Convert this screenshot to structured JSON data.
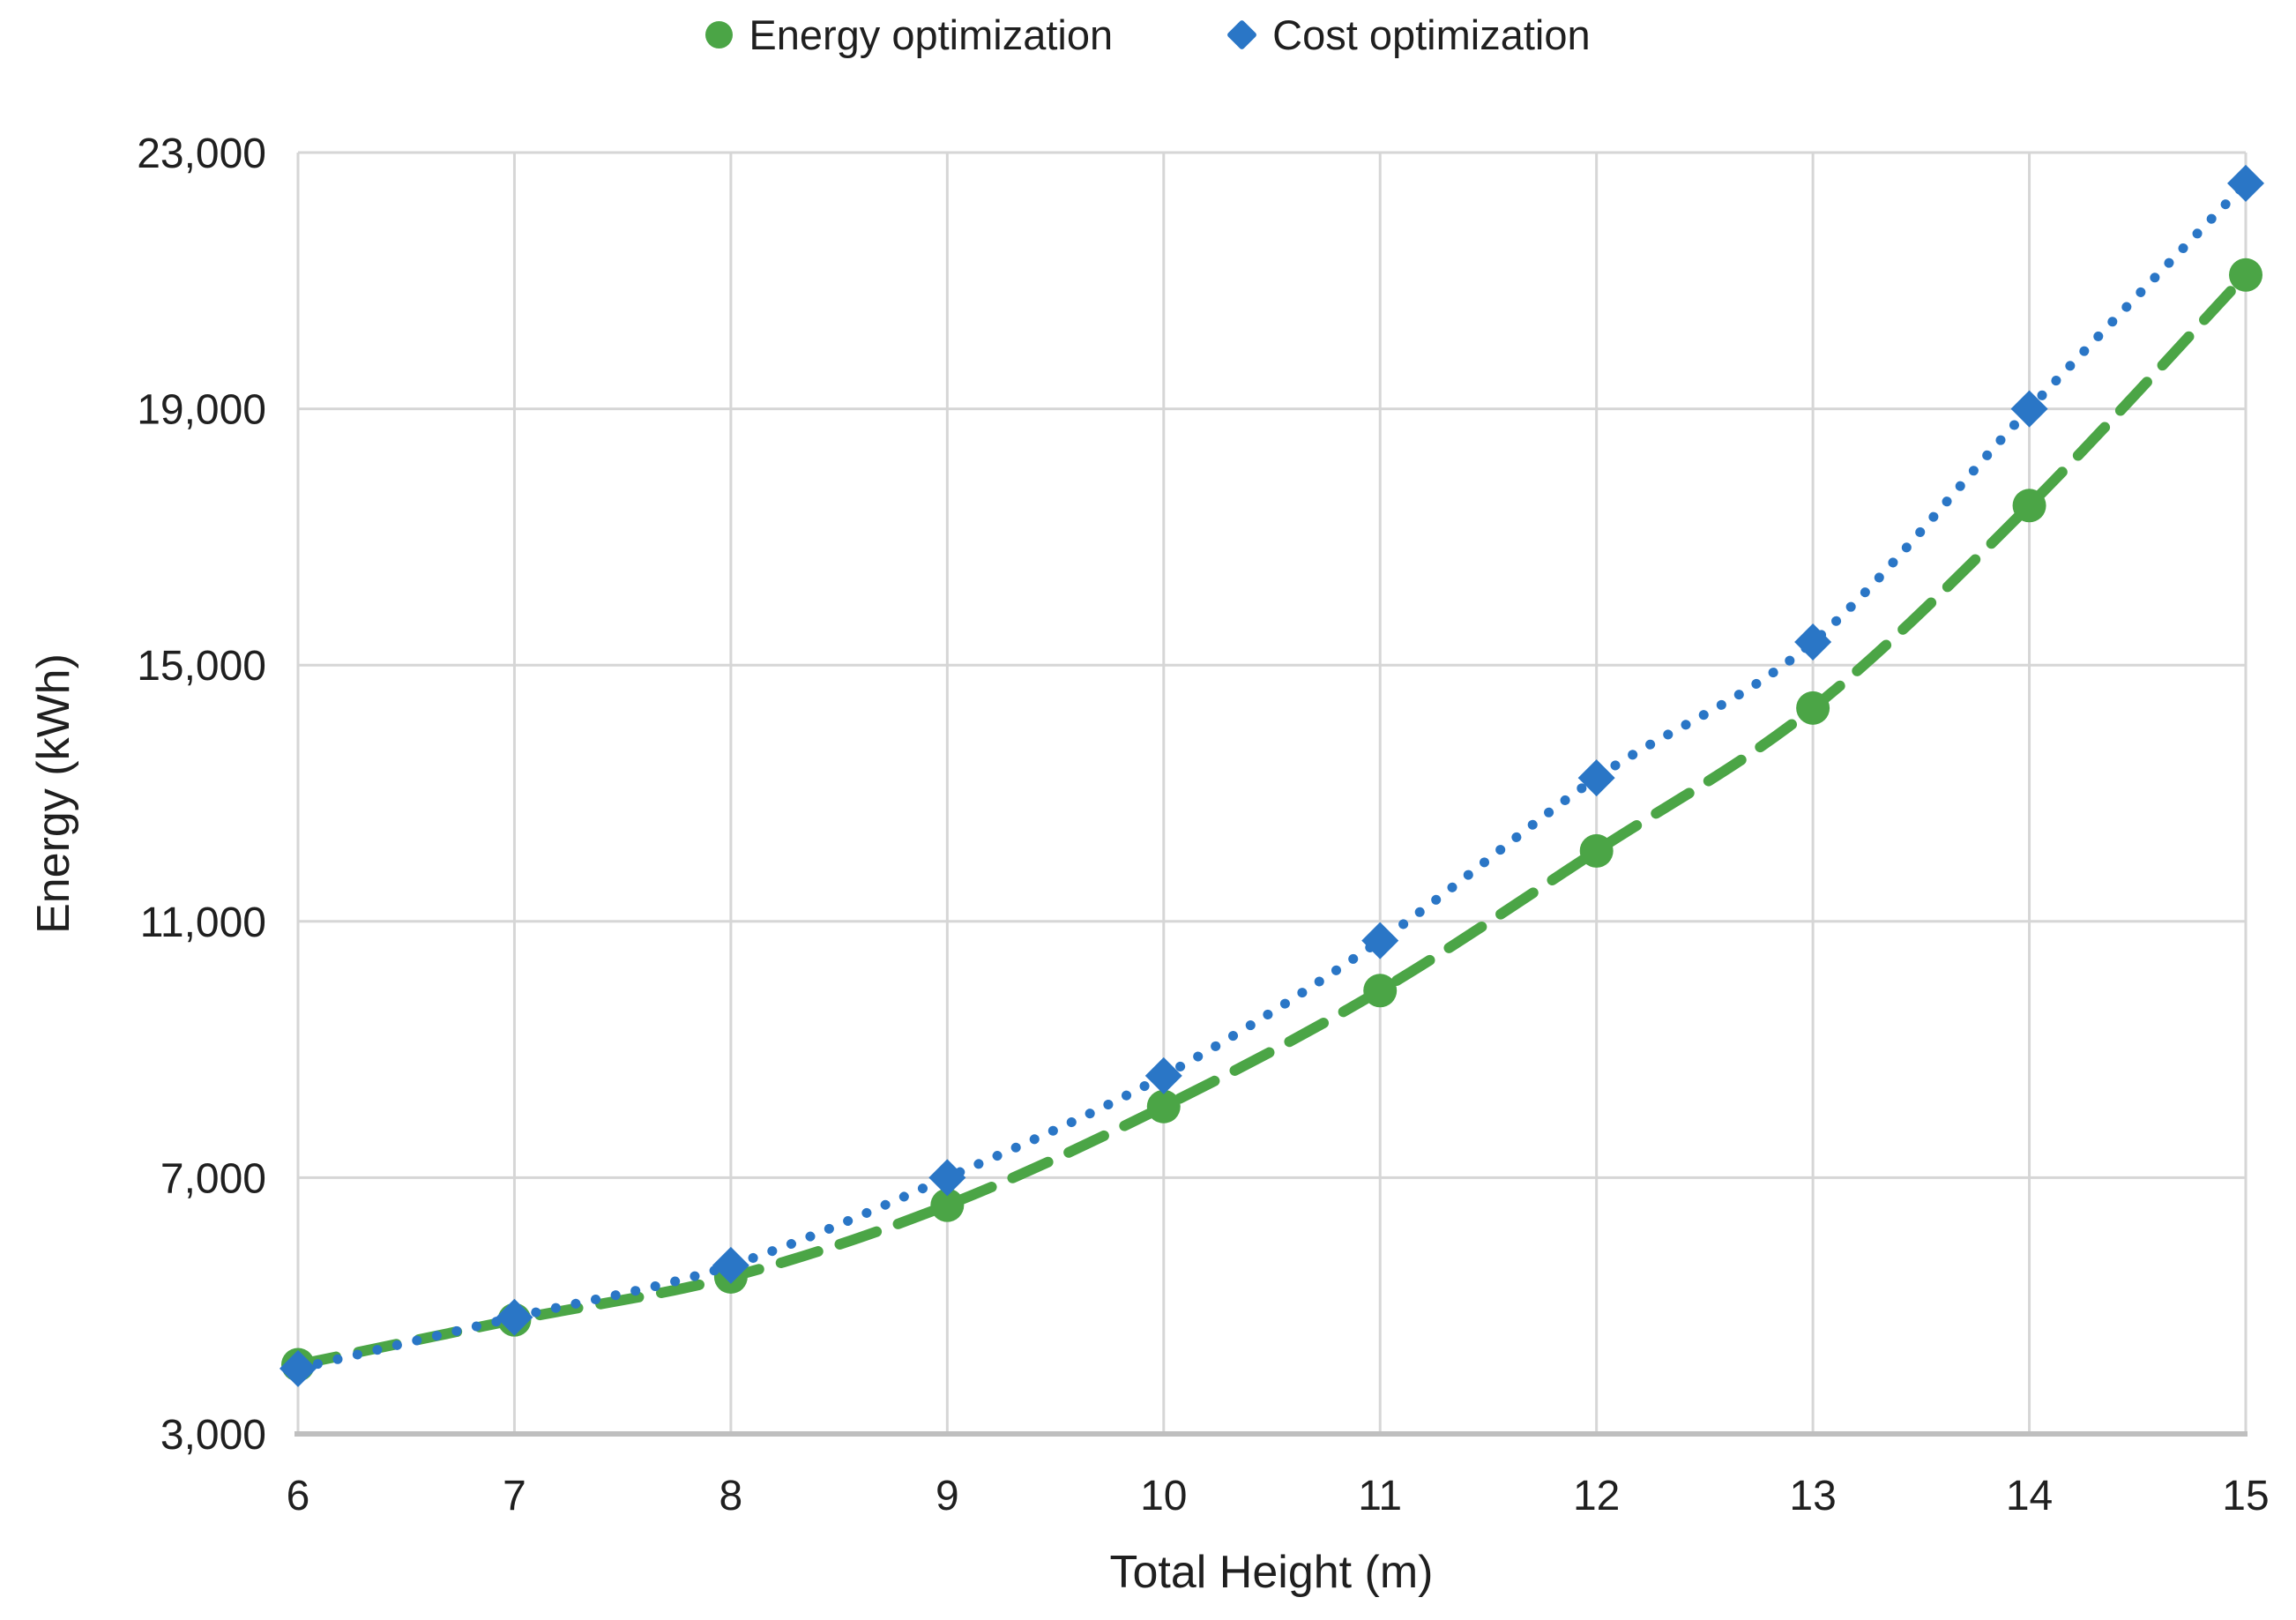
{
  "chart_data": {
    "type": "line",
    "title": "",
    "xlabel": "Total Height (m)",
    "ylabel": "Energy (kWh)",
    "x": [
      6,
      7,
      8,
      9,
      10,
      11,
      12,
      13,
      14,
      15
    ],
    "xlim": [
      6,
      15
    ],
    "ylim": [
      3000,
      23000
    ],
    "grid": true,
    "legend_position": "top-center",
    "xticks": {
      "values": [
        6,
        7,
        8,
        9,
        10,
        11,
        12,
        13,
        14,
        15
      ],
      "labels": [
        "6",
        "7",
        "8",
        "9",
        "10",
        "11",
        "12",
        "13",
        "14",
        "15"
      ]
    },
    "yticks": {
      "values": [
        3000,
        7000,
        11000,
        15000,
        19000,
        23000
      ],
      "labels": [
        "3,000",
        "7,000",
        "11,000",
        "15,000",
        "19,000",
        "23,000"
      ]
    },
    "series": [
      {
        "name": "Energy optimization",
        "color": "#4BA546",
        "marker": "circle",
        "line_style": "dashed",
        "values": [
          4080,
          4780,
          5450,
          6570,
          8110,
          9920,
          12100,
          14330,
          17490,
          21090
        ]
      },
      {
        "name": "Cost optimization",
        "color": "#2A76C6",
        "marker": "diamond",
        "line_style": "dotted",
        "values": [
          4020,
          4820,
          5630,
          7000,
          8590,
          10700,
          13240,
          15360,
          19000,
          22520
        ]
      }
    ],
    "styles": {
      "gridline_color": "#D6D6D6",
      "axis_line_color": "#BFBFBF",
      "text_color": "#1F1F1F",
      "background": "#FFFFFF"
    }
  }
}
